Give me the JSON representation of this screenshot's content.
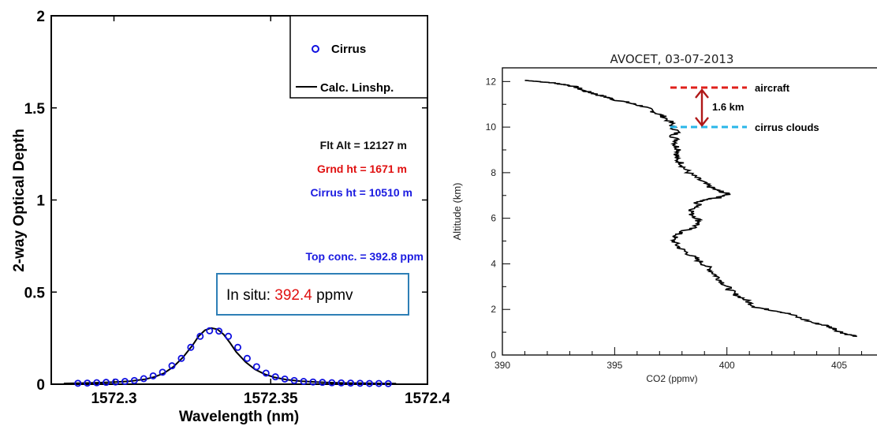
{
  "chart_data": [
    {
      "type": "scatter",
      "xlabel": "Wavelength (nm)",
      "ylabel": "2-way Optical Depth",
      "xlim": [
        1572.28,
        1572.4
      ],
      "ylim": [
        0,
        2
      ],
      "xticks": [
        "1572.3",
        "1572.35",
        "1572.4"
      ],
      "yticks": [
        "0",
        "0.5",
        "1",
        "1.5",
        "2"
      ],
      "legend": {
        "placement": "top-right",
        "entries": [
          "Cirrus",
          "Calc. Linshp."
        ]
      },
      "annotations": {
        "flt_alt": "Flt Alt = 12127 m",
        "grnd_ht": "Grnd ht = 1671 m",
        "cirrus_ht": "Cirrus ht = 10510 m",
        "top_conc": "Top conc. = 392.8 ppm",
        "insitu_prefix": "In situ: ",
        "insitu_value": "392.4",
        "insitu_suffix": " ppmv"
      },
      "series": [
        {
          "name": "Cirrus",
          "style": "markers",
          "x": [
            1572.2885,
            1572.2915,
            1572.2945,
            1572.2975,
            1572.3005,
            1572.3035,
            1572.3065,
            1572.3095,
            1572.3125,
            1572.3155,
            1572.3185,
            1572.3215,
            1572.3245,
            1572.3275,
            1572.3305,
            1572.3335,
            1572.3365,
            1572.3395,
            1572.3425,
            1572.3455,
            1572.3485,
            1572.3515,
            1572.3545,
            1572.3575,
            1572.3605,
            1572.3635,
            1572.3665,
            1572.3695,
            1572.3725,
            1572.3755,
            1572.3785,
            1572.3815,
            1572.3845,
            1572.3875
          ],
          "values": [
            0.005,
            0.006,
            0.008,
            0.01,
            0.012,
            0.015,
            0.02,
            0.03,
            0.045,
            0.065,
            0.1,
            0.14,
            0.2,
            0.26,
            0.29,
            0.288,
            0.26,
            0.2,
            0.14,
            0.095,
            0.06,
            0.04,
            0.028,
            0.02,
            0.015,
            0.012,
            0.01,
            0.008,
            0.007,
            0.006,
            0.005,
            0.004,
            0.004,
            0.003
          ]
        },
        {
          "name": "Calc. Linshp.",
          "style": "line",
          "x": [
            1572.284,
            1572.29,
            1572.295,
            1572.3,
            1572.305,
            1572.31,
            1572.313,
            1572.316,
            1572.319,
            1572.322,
            1572.325,
            1572.327,
            1572.329,
            1572.331,
            1572.333,
            1572.335,
            1572.337,
            1572.339,
            1572.342,
            1572.345,
            1572.348,
            1572.351,
            1572.355,
            1572.36,
            1572.365,
            1572.37,
            1572.375,
            1572.38,
            1572.385,
            1572.39
          ],
          "values": [
            0.004,
            0.006,
            0.008,
            0.011,
            0.016,
            0.027,
            0.04,
            0.06,
            0.095,
            0.145,
            0.21,
            0.26,
            0.293,
            0.305,
            0.298,
            0.27,
            0.225,
            0.175,
            0.12,
            0.08,
            0.055,
            0.038,
            0.025,
            0.016,
            0.011,
            0.008,
            0.006,
            0.005,
            0.004,
            0.003
          ]
        }
      ]
    },
    {
      "type": "line",
      "title": "AVOCET, 03-07-2013",
      "xlabel": "CO2 (ppmv)",
      "ylabel": "Altitude (km)",
      "xlim": [
        390,
        407
      ],
      "ylim": [
        0,
        12.6
      ],
      "xticks": [
        "390",
        "395",
        "400",
        "405"
      ],
      "yticks": [
        "0",
        "2",
        "4",
        "6",
        "8",
        "10",
        "12"
      ],
      "annotations": {
        "aircraft": "aircraft",
        "distance": "1.6 km",
        "cirrus_clouds": "cirrus clouds"
      },
      "colors": {
        "aircraft_line": "#e0201b",
        "arrow": "#b01818",
        "cirrus_line": "#29b6e8"
      },
      "series": [
        {
          "x": [
            391.0,
            391.6,
            392.2,
            392.5,
            392.9,
            393.3,
            393.6,
            394.0,
            394.3,
            394.7,
            395.0,
            395.5,
            395.9,
            396.3,
            396.6,
            396.9,
            397.2,
            397.5,
            397.6,
            397.8,
            397.6,
            397.8,
            397.7,
            397.9,
            397.8,
            397.7,
            398.0,
            398.1,
            398.3,
            398.6,
            398.9,
            399.2,
            399.5,
            399.8,
            400.1,
            399.6,
            399.0,
            398.6,
            398.8,
            398.5,
            398.4,
            398.7,
            398.8,
            398.5,
            398.1,
            397.8,
            397.6,
            397.7,
            397.9,
            398.2,
            398.5,
            398.8,
            399.1,
            399.3,
            399.5,
            399.7,
            399.9,
            400.1,
            400.3,
            400.7,
            401.0,
            401.3,
            401.8,
            402.4,
            402.8,
            403.3,
            403.9,
            404.4,
            404.8,
            405.1,
            405.4,
            405.8
          ],
          "values": [
            12.05,
            12.0,
            11.95,
            11.9,
            11.85,
            11.75,
            11.6,
            11.5,
            11.4,
            11.3,
            11.2,
            11.1,
            11.0,
            10.9,
            10.75,
            10.6,
            10.45,
            10.2,
            10.0,
            9.8,
            9.6,
            9.4,
            9.2,
            9.0,
            8.8,
            8.6,
            8.4,
            8.2,
            8.0,
            7.8,
            7.6,
            7.4,
            7.25,
            7.15,
            7.05,
            6.9,
            6.8,
            6.7,
            6.55,
            6.4,
            6.2,
            6.0,
            5.8,
            5.6,
            5.45,
            5.3,
            5.1,
            4.9,
            4.7,
            4.5,
            4.3,
            4.1,
            3.9,
            3.7,
            3.5,
            3.3,
            3.1,
            2.9,
            2.7,
            2.5,
            2.3,
            2.1,
            2.0,
            1.9,
            1.8,
            1.6,
            1.4,
            1.3,
            1.15,
            1.0,
            0.9,
            0.82
          ]
        }
      ]
    }
  ]
}
